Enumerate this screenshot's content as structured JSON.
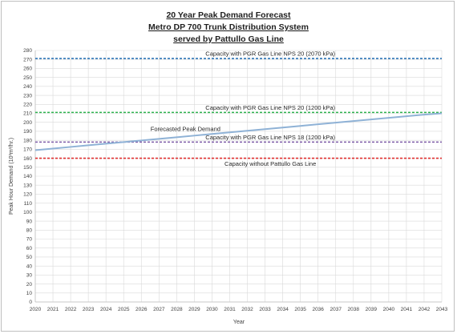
{
  "chart_data": {
    "type": "line",
    "title_lines": [
      "20 Year Peak Demand Forecast",
      "Metro DP 700 Trunk Distribution System",
      "served by Pattullo Gas Line"
    ],
    "xlabel": "Year",
    "ylabel": "Peak Hour Demand (10³m³/hr.)",
    "x": [
      2020,
      2021,
      2022,
      2023,
      2024,
      2025,
      2026,
      2027,
      2028,
      2029,
      2030,
      2031,
      2032,
      2033,
      2034,
      2035,
      2036,
      2037,
      2038,
      2039,
      2040,
      2041,
      2042,
      2043
    ],
    "xlim": [
      2020,
      2043
    ],
    "ylim": [
      0,
      280
    ],
    "ytick_step": 10,
    "grid": true,
    "series": [
      {
        "name": "Forecasted Peak Demand",
        "style": "solid",
        "color": "#8fb2d6",
        "values": [
          169,
          170.8,
          172.6,
          174.4,
          176.2,
          178,
          179.8,
          181.6,
          183.4,
          185.2,
          187,
          188.8,
          190.6,
          192.4,
          194.2,
          196,
          197.8,
          199.6,
          201.4,
          203.2,
          205,
          206.8,
          208.6,
          210
        ]
      }
    ],
    "reference_lines": [
      {
        "name": "Capacity with PGR Gas Line NPS 20 (2070 kPa)",
        "y": 271,
        "color": "#2e75b6"
      },
      {
        "name": "Capacity with PGR Gas Line NPS 20 (1200 kPa)",
        "y": 211,
        "color": "#2eb24f"
      },
      {
        "name": "Capacity with PGR Gas Line NPS 18 (1200 kPa)",
        "y": 178,
        "color": "#7e5ca8"
      },
      {
        "name": "Capacity without Pattullo Gas Line",
        "y": 160,
        "color": "#e03030"
      }
    ],
    "series_label": {
      "text": "Forecasted Peak Demand",
      "x": 2028.5,
      "y": 190.5
    },
    "ref_label_x": 2033.3
  }
}
